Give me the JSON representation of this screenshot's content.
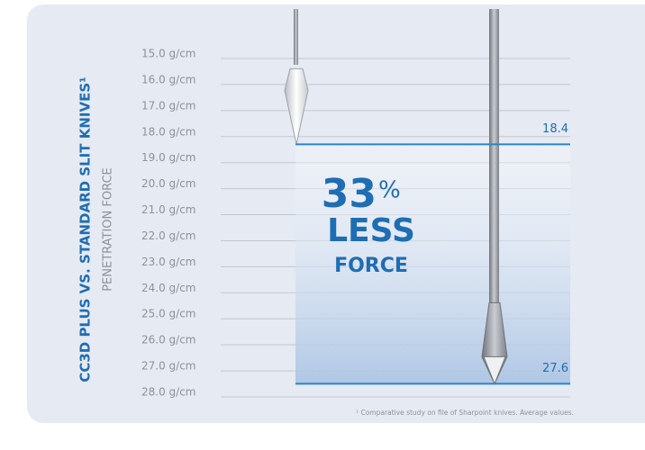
{
  "chart_data": {
    "type": "bar",
    "title": "CC3D PLUS VS. STANDARD SLIT KNIVES¹",
    "y_label": "PENETRATION FORCE",
    "values": [
      18.4,
      27.6
    ],
    "color": "#2a86c9",
    "ylim": [
      28,
      15
    ],
    "yticks": [
      {
        "value": 15,
        "label": "15.0 g/cm"
      },
      {
        "value": 16,
        "label": "16.0 g/cm"
      },
      {
        "value": 17,
        "label": "17.0 g/cm"
      },
      {
        "value": 18,
        "label": "18.0 g/cm"
      },
      {
        "value": 19,
        "label": "19.0 g/cm"
      },
      {
        "value": 20,
        "label": "20.0 g/cm"
      },
      {
        "value": 21,
        "label": "21.0 g/cm"
      },
      {
        "value": 22,
        "label": "22.0 g/cm"
      },
      {
        "value": 23,
        "label": "23.0 g/cm"
      },
      {
        "value": 24,
        "label": "24.0 g/cm"
      },
      {
        "value": 25,
        "label": "25.0 g/cm"
      },
      {
        "value": 26,
        "label": "26.0 g/cm"
      },
      {
        "value": 27,
        "label": "27.0 g/cm"
      },
      {
        "value": 28,
        "label": "28.0 g/cm"
      }
    ],
    "grid": true,
    "annotation": {
      "number": "33",
      "unit": "%",
      "line2": "LESS",
      "line3": "FORCE"
    },
    "footnote": "¹ Comparative study on file of Sharpoint knives. Average values."
  }
}
